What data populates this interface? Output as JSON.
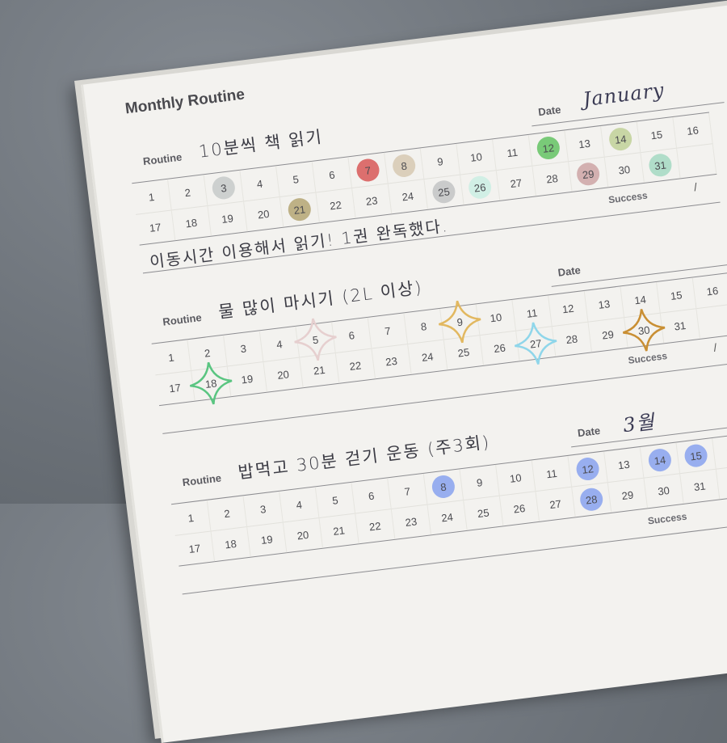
{
  "title": "Monthly Routine",
  "labels": {
    "routine": "Routine",
    "date": "Date",
    "success": "Success",
    "slash": "/"
  },
  "days": [
    1,
    2,
    3,
    4,
    5,
    6,
    7,
    8,
    9,
    10,
    11,
    12,
    13,
    14,
    15,
    16,
    17,
    18,
    19,
    20,
    21,
    22,
    23,
    24,
    25,
    26,
    27,
    28,
    29,
    30,
    31
  ],
  "sections": [
    {
      "routine": "10분씩 책 읽기",
      "date": "January",
      "note": "이동시간 이용해서 읽기! 1권 완독했다.",
      "marker": "dot",
      "marks": {
        "3": "#c9cccb",
        "7": "#d9615f",
        "8": "#d8cbb5",
        "12": "#6cc56a",
        "14": "#c3d39c",
        "21": "#b8aa7a",
        "25": "#c5c7c6",
        "26": "#cdeee3",
        "29": "#cfa9a8",
        "31": "#a9dac4"
      }
    },
    {
      "routine": "물 많이 마시기 (2L 이상)",
      "date": "",
      "note": "",
      "marker": "star",
      "marks": {
        "5": "#e6cfcf",
        "9": "#e2b860",
        "18": "#5ac581",
        "27": "#8fd6ea",
        "30": "#c98f34"
      }
    },
    {
      "routine": "밥먹고 30분 걷기 운동 (주3회)",
      "date": "3월",
      "note": "",
      "marker": "dot",
      "marks": {
        "8": "#8ea6ee",
        "12": "#8ea6ee",
        "14": "#8ea6ee",
        "15": "#8ea6ee",
        "28": "#8ea6ee"
      }
    }
  ]
}
